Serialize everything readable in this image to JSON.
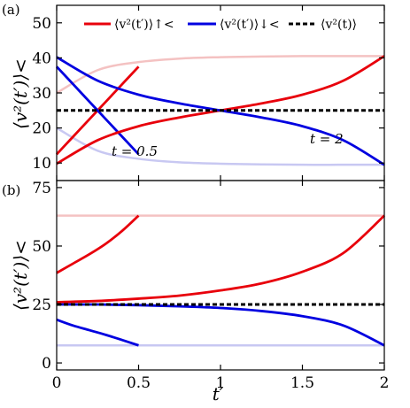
{
  "chart_data": [
    {
      "panel_label": "(a)",
      "type": "line",
      "xlabel": "",
      "ylabel": "⟨v²(t′)⟩<",
      "xlim": [
        0,
        2
      ],
      "ylim": [
        5,
        55
      ],
      "x_ticks": [
        "0",
        "0.5",
        "1",
        "1.5",
        "2"
      ],
      "y_ticks": [
        10,
        20,
        30,
        40,
        50
      ],
      "legend": {
        "placement": "top",
        "entries": [
          {
            "label": "⟨v²(t′)⟩↑<",
            "color": "#e8000b",
            "style": "solid"
          },
          {
            "label": "⟨v²(t′)⟩↓<",
            "color": "#0000e0",
            "style": "solid"
          },
          {
            "label": "⟨v²(t)⟩",
            "color": "#000000",
            "style": "dashed"
          }
        ]
      },
      "annotations": [
        "t = 0.5",
        "t = 2"
      ],
      "series": [
        {
          "color": "#e8000b",
          "style": "solid",
          "x": [
            0,
            0.1,
            0.2,
            0.3,
            0.4,
            0.5
          ],
          "values": [
            12.5,
            17.5,
            22.5,
            27.5,
            32.5,
            37.5
          ]
        },
        {
          "color": "#0000e0",
          "style": "solid",
          "x": [
            0,
            0.1,
            0.2,
            0.3,
            0.4,
            0.5
          ],
          "values": [
            37.5,
            32.5,
            27.5,
            22.5,
            17.5,
            12.5
          ]
        },
        {
          "color": "#e8000b",
          "style": "solid",
          "x": [
            0,
            0.25,
            0.5,
            0.75,
            1,
            1.25,
            1.5,
            1.75,
            2
          ],
          "values": [
            9.8,
            16.5,
            20.5,
            23,
            25,
            27,
            29.5,
            33.5,
            40.5
          ]
        },
        {
          "color": "#0000e0",
          "style": "solid",
          "x": [
            0,
            0.25,
            0.5,
            0.75,
            1,
            1.25,
            1.5,
            1.75,
            2
          ],
          "values": [
            40.2,
            33.5,
            29.5,
            27,
            25,
            23,
            20.5,
            16.5,
            9.5
          ]
        },
        {
          "color": "#000000",
          "style": "dashed",
          "x": [
            0,
            2
          ],
          "values": [
            25,
            25
          ]
        },
        {
          "color": "#f4c2c2",
          "style": "faint",
          "x": [
            0,
            0.25,
            0.5,
            0.75,
            1,
            1.25,
            1.5,
            1.75,
            2
          ],
          "values": [
            30,
            36.5,
            38.8,
            39.8,
            40.2,
            40.4,
            40.5,
            40.5,
            40.5
          ]
        },
        {
          "color": "#c8c8f2",
          "style": "faint",
          "x": [
            0,
            0.25,
            0.5,
            0.75,
            1,
            1.25,
            1.5,
            1.75,
            2
          ],
          "values": [
            20,
            13.5,
            11.2,
            10.2,
            9.8,
            9.6,
            9.5,
            9.5,
            9.5
          ]
        }
      ]
    },
    {
      "panel_label": "(b)",
      "type": "line",
      "xlabel": "t′",
      "ylabel": "⟨v²(t′)⟩<",
      "xlim": [
        0,
        2
      ],
      "ylim": [
        -3,
        78
      ],
      "x_ticks": [
        "0",
        "0.5",
        "1",
        "1.5",
        "2"
      ],
      "y_ticks": [
        0,
        25,
        50,
        75
      ],
      "series": [
        {
          "color": "#e8000b",
          "style": "solid",
          "x": [
            0,
            0.1,
            0.2,
            0.3,
            0.4,
            0.5
          ],
          "values": [
            38.5,
            42.5,
            46.5,
            51,
            56.5,
            63
          ]
        },
        {
          "color": "#0000e0",
          "style": "solid",
          "x": [
            0,
            0.1,
            0.2,
            0.3,
            0.4,
            0.5
          ],
          "values": [
            18.5,
            16,
            14,
            12,
            9.8,
            7.5
          ]
        },
        {
          "color": "#e8000b",
          "style": "solid",
          "x": [
            0,
            0.25,
            0.5,
            0.75,
            1,
            1.25,
            1.5,
            1.75,
            2
          ],
          "values": [
            26,
            26.5,
            27.5,
            28.8,
            31,
            34,
            39,
            47,
            63
          ]
        },
        {
          "color": "#0000e0",
          "style": "solid",
          "x": [
            0,
            0.25,
            0.5,
            0.75,
            1,
            1.25,
            1.5,
            1.75,
            2
          ],
          "values": [
            25,
            25,
            24.7,
            24.2,
            23.5,
            22.2,
            20,
            16,
            7.5
          ]
        },
        {
          "color": "#000000",
          "style": "dashed",
          "x": [
            0,
            2
          ],
          "values": [
            25,
            25
          ]
        },
        {
          "color": "#f4c2c2",
          "style": "faint",
          "x": [
            0,
            2
          ],
          "values": [
            63,
            63
          ]
        },
        {
          "color": "#c8c8f2",
          "style": "faint",
          "x": [
            0,
            2
          ],
          "values": [
            7.5,
            7.5
          ]
        }
      ]
    }
  ]
}
